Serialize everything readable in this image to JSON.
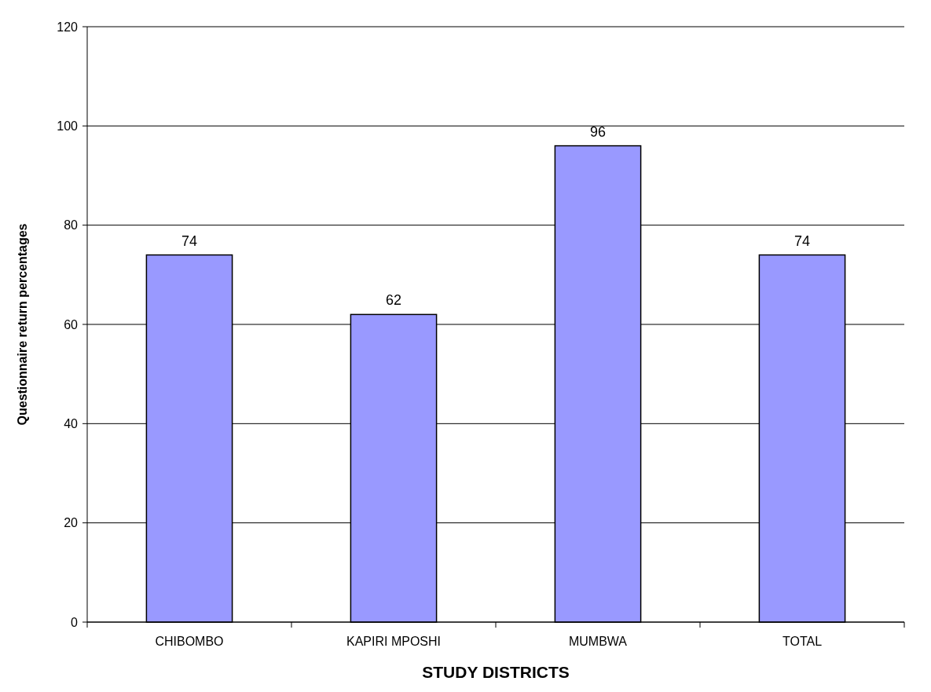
{
  "chart_data": {
    "type": "bar",
    "categories": [
      "CHIBOMBO",
      "KAPIRI MPOSHI",
      "MUMBWA",
      "TOTAL"
    ],
    "values": [
      74,
      62,
      96,
      74
    ],
    "color": "#9999ff",
    "ylim": [
      0,
      120
    ],
    "yticks": [
      0,
      20,
      40,
      60,
      80,
      100,
      120
    ],
    "grid": "y",
    "data_labels": true,
    "xlabel": "STUDY DISTRICTS",
    "ylabel": "Questionnaire return percentages"
  }
}
